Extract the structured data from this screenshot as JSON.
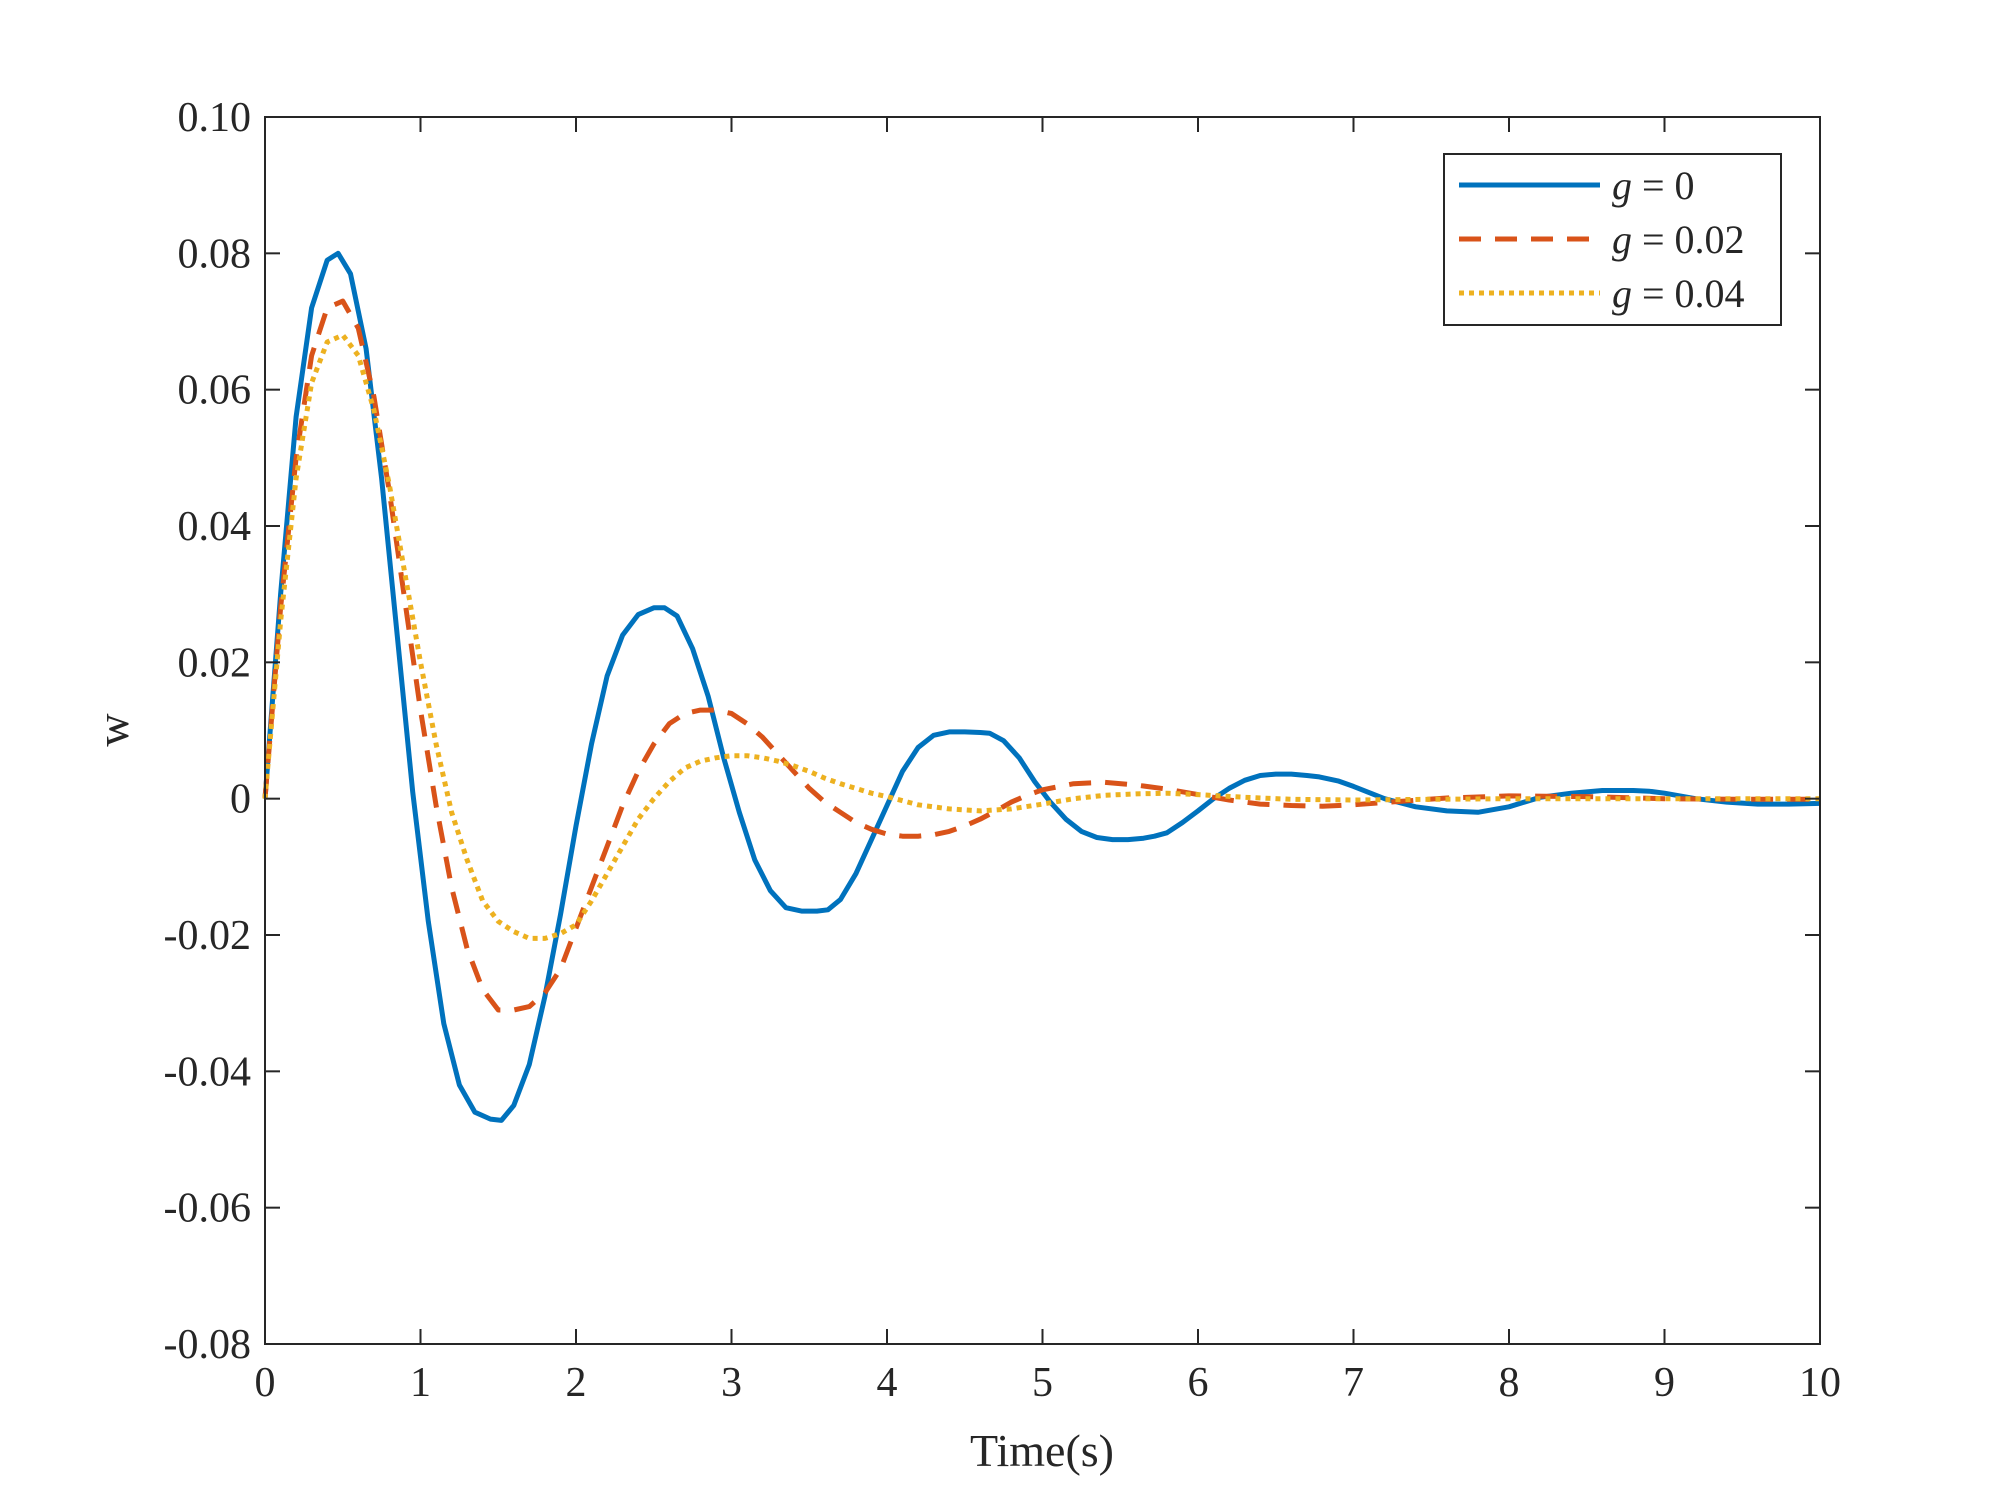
{
  "chart_data": {
    "type": "line",
    "title": "",
    "xlabel": "Time(s)",
    "ylabel": "w",
    "xlim": [
      0,
      10
    ],
    "ylim": [
      -0.08,
      0.1
    ],
    "xticks": [
      0,
      1,
      2,
      3,
      4,
      5,
      6,
      7,
      8,
      9,
      10
    ],
    "xtick_labels": [
      "0",
      "1",
      "2",
      "3",
      "4",
      "5",
      "6",
      "7",
      "8",
      "9",
      "10"
    ],
    "yticks": [
      -0.08,
      -0.06,
      -0.04,
      -0.02,
      0,
      0.02,
      0.04,
      0.06,
      0.08,
      0.1
    ],
    "ytick_labels": [
      "-0.08",
      "-0.06",
      "-0.04",
      "-0.02",
      "0",
      "0.02",
      "0.04",
      "0.06",
      "0.08",
      "0.10"
    ],
    "grid": false,
    "legend_position": "top-right",
    "series": [
      {
        "name": "g = 0",
        "legend_var": "g",
        "legend_eq": " = 0",
        "color": "#0072BD",
        "style": "solid",
        "x": [
          0,
          0.1,
          0.2,
          0.3,
          0.4,
          0.47,
          0.55,
          0.65,
          0.75,
          0.85,
          0.95,
          1.05,
          1.15,
          1.25,
          1.35,
          1.45,
          1.52,
          1.6,
          1.7,
          1.8,
          1.9,
          2.0,
          2.1,
          2.2,
          2.3,
          2.4,
          2.5,
          2.57,
          2.65,
          2.75,
          2.85,
          2.95,
          3.05,
          3.15,
          3.25,
          3.35,
          3.45,
          3.55,
          3.62,
          3.7,
          3.8,
          3.9,
          4.0,
          4.1,
          4.2,
          4.3,
          4.4,
          4.5,
          4.6,
          4.66,
          4.75,
          4.85,
          4.95,
          5.05,
          5.15,
          5.25,
          5.35,
          5.45,
          5.55,
          5.65,
          5.72,
          5.8,
          5.9,
          6.0,
          6.1,
          6.2,
          6.3,
          6.4,
          6.5,
          6.6,
          6.7,
          6.78,
          6.9,
          7.0,
          7.2,
          7.4,
          7.6,
          7.8,
          8.0,
          8.2,
          8.4,
          8.6,
          8.8,
          8.9,
          9.0,
          9.2,
          9.4,
          9.6,
          9.8,
          10.0
        ],
        "y": [
          0,
          0.03,
          0.056,
          0.072,
          0.079,
          0.08,
          0.077,
          0.066,
          0.047,
          0.024,
          0.001,
          -0.018,
          -0.033,
          -0.042,
          -0.046,
          -0.047,
          -0.0472,
          -0.045,
          -0.039,
          -0.029,
          -0.017,
          -0.004,
          0.008,
          0.018,
          0.024,
          0.027,
          0.028,
          0.028,
          0.0268,
          0.022,
          0.015,
          0.006,
          -0.002,
          -0.009,
          -0.0135,
          -0.016,
          -0.0165,
          -0.0165,
          -0.0163,
          -0.0148,
          -0.011,
          -0.006,
          -0.001,
          0.004,
          0.0075,
          0.0093,
          0.0098,
          0.0098,
          0.0097,
          0.0096,
          0.0085,
          0.006,
          0.0025,
          -0.0005,
          -0.003,
          -0.0048,
          -0.0057,
          -0.006,
          -0.006,
          -0.0058,
          -0.0055,
          -0.005,
          -0.0035,
          -0.0018,
          0.0,
          0.0015,
          0.0027,
          0.0034,
          0.0036,
          0.0036,
          0.0034,
          0.0032,
          0.0026,
          0.0018,
          0.0,
          -0.0012,
          -0.0018,
          -0.002,
          -0.0012,
          0.0002,
          0.0008,
          0.0012,
          0.0012,
          0.0011,
          0.0008,
          0.0,
          -0.0005,
          -0.0008,
          -0.0008,
          -0.0007
        ]
      },
      {
        "name": "g = 0.02",
        "legend_var": "g",
        "legend_eq": " = 0.02",
        "color": "#D95319",
        "style": "dashed",
        "x": [
          0,
          0.1,
          0.2,
          0.3,
          0.4,
          0.5,
          0.6,
          0.7,
          0.8,
          0.9,
          1.0,
          1.1,
          1.2,
          1.3,
          1.4,
          1.5,
          1.6,
          1.7,
          1.8,
          1.9,
          2.0,
          2.1,
          2.2,
          2.3,
          2.4,
          2.5,
          2.6,
          2.7,
          2.8,
          2.9,
          3.0,
          3.1,
          3.2,
          3.3,
          3.4,
          3.5,
          3.6,
          3.7,
          3.8,
          3.9,
          4.0,
          4.1,
          4.2,
          4.3,
          4.4,
          4.5,
          4.6,
          4.7,
          4.8,
          4.9,
          5.0,
          5.2,
          5.4,
          5.6,
          5.8,
          6.0,
          6.2,
          6.4,
          6.6,
          6.8,
          7.0,
          7.3,
          7.6,
          8.0,
          8.5,
          9.0,
          9.5,
          10.0
        ],
        "y": [
          0,
          0.028,
          0.05,
          0.065,
          0.072,
          0.073,
          0.069,
          0.059,
          0.045,
          0.029,
          0.013,
          -0.001,
          -0.013,
          -0.022,
          -0.028,
          -0.031,
          -0.031,
          -0.0305,
          -0.0285,
          -0.025,
          -0.019,
          -0.013,
          -0.007,
          -0.001,
          0.004,
          0.008,
          0.011,
          0.0125,
          0.013,
          0.013,
          0.0125,
          0.011,
          0.009,
          0.0065,
          0.004,
          0.0015,
          -0.0005,
          -0.002,
          -0.0035,
          -0.0045,
          -0.0052,
          -0.0055,
          -0.0055,
          -0.0053,
          -0.0048,
          -0.004,
          -0.003,
          -0.0018,
          -0.0005,
          0.0005,
          0.0013,
          0.0022,
          0.0024,
          0.002,
          0.0014,
          0.0006,
          -0.0002,
          -0.0008,
          -0.001,
          -0.0011,
          -0.0009,
          -0.0004,
          0.0001,
          0.0004,
          0.0003,
          0.0,
          -0.0001,
          -0.0001
        ]
      },
      {
        "name": "g = 0.04",
        "legend_var": "g",
        "legend_eq": " = 0.04",
        "color": "#EDB120",
        "style": "dotted",
        "x": [
          0,
          0.1,
          0.2,
          0.3,
          0.4,
          0.5,
          0.6,
          0.7,
          0.8,
          0.9,
          1.0,
          1.1,
          1.2,
          1.3,
          1.4,
          1.5,
          1.6,
          1.7,
          1.8,
          1.9,
          2.0,
          2.1,
          2.2,
          2.3,
          2.4,
          2.5,
          2.6,
          2.7,
          2.8,
          2.9,
          3.0,
          3.1,
          3.2,
          3.3,
          3.4,
          3.5,
          3.6,
          3.7,
          3.8,
          3.9,
          4.0,
          4.2,
          4.4,
          4.6,
          4.8,
          5.0,
          5.2,
          5.4,
          5.6,
          5.8,
          6.0,
          6.3,
          6.6,
          7.0,
          7.5,
          8.0,
          8.5,
          9.0,
          9.5,
          10.0
        ],
        "y": [
          0,
          0.026,
          0.047,
          0.061,
          0.067,
          0.068,
          0.065,
          0.057,
          0.046,
          0.033,
          0.02,
          0.008,
          -0.002,
          -0.009,
          -0.015,
          -0.018,
          -0.0195,
          -0.0205,
          -0.0205,
          -0.0198,
          -0.0185,
          -0.015,
          -0.011,
          -0.007,
          -0.003,
          0.0,
          0.0025,
          0.0045,
          0.0055,
          0.006,
          0.0063,
          0.0063,
          0.006,
          0.0055,
          0.0048,
          0.004,
          0.003,
          0.0022,
          0.0015,
          0.0008,
          0.0003,
          -0.0009,
          -0.0015,
          -0.0018,
          -0.0015,
          -0.0008,
          0.0,
          0.0005,
          0.0007,
          0.0008,
          0.0006,
          0.0002,
          -0.0001,
          -0.0002,
          -0.0001,
          0.0,
          0.0,
          0.0,
          0.0,
          0.0
        ]
      }
    ]
  }
}
